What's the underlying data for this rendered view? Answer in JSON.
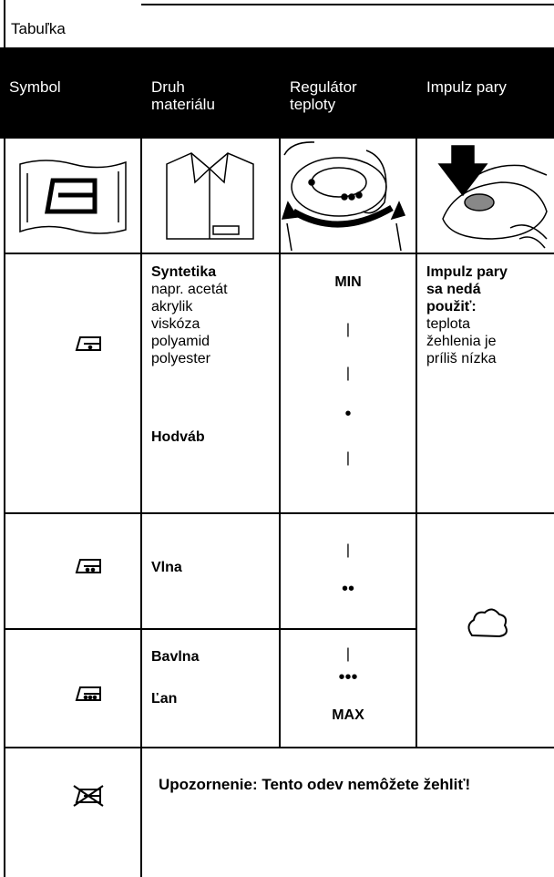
{
  "header": {
    "title": "Tabuľka"
  },
  "table": {
    "columns": [
      [
        "Symbol"
      ],
      [
        "Druh",
        "materiálu"
      ],
      [
        "Regulátor",
        "teploty"
      ],
      [
        "Impulz pary"
      ]
    ],
    "rows": [
      {
        "material": [
          "Syntetika",
          "napr. acetát",
          "akrylik",
          "viskóza",
          "polyamid",
          "polyester",
          "Hodváb"
        ],
        "regulator": [
          "MIN",
          "|",
          "|",
          "•",
          "|"
        ],
        "steam": [
          "Impulz pary",
          "sa nedá",
          "použiť:",
          "teplota",
          "žehlenia je",
          "príliš nízka"
        ]
      },
      {
        "material": [
          "Vlna"
        ],
        "regulator": [
          "|",
          "••"
        ]
      },
      {
        "material": [
          "Bavlna",
          "Ľan"
        ],
        "regulator": [
          "|",
          "•••",
          "MAX"
        ]
      },
      {
        "warning": "Upozornenie: Tento odev nemôžete žehliť!"
      }
    ]
  }
}
